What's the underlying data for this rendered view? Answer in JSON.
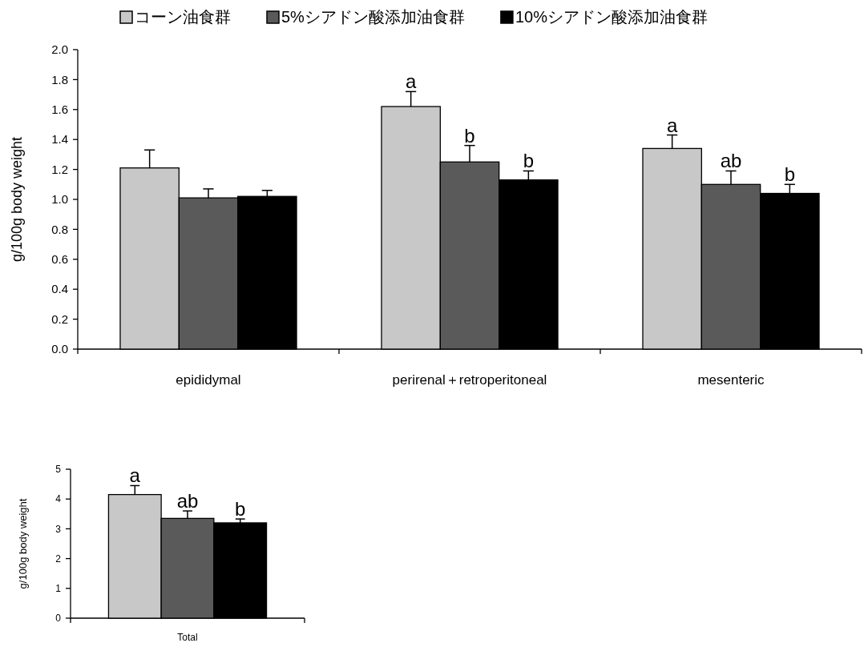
{
  "chart_data": [
    {
      "type": "bar",
      "categories": [
        "epididymal",
        "perirenal＋retroperitoneal",
        "mesenteric"
      ],
      "ylabel": "g/100g body weight",
      "legend": "top",
      "series": [
        {
          "name": "コーン油食群",
          "color": "#c8c8c8",
          "values": [
            1.21,
            1.62,
            1.34
          ],
          "errors": [
            [
              1.21,
              1.33
            ],
            [
              1.62,
              1.72
            ],
            [
              1.34,
              1.43
            ]
          ],
          "value_labels": [
            null,
            "a",
            "a"
          ]
        },
        {
          "name": "5%シアドン酸添加油食群",
          "color": "#5a5a5a",
          "values": [
            1.01,
            1.25,
            1.1
          ],
          "errors": [
            [
              1.01,
              1.07
            ],
            [
              1.25,
              1.36
            ],
            [
              1.1,
              1.19
            ]
          ],
          "value_labels": [
            null,
            "b",
            "ab"
          ]
        },
        {
          "name": "10%シアドン酸添加油食群",
          "color": "#000000",
          "values": [
            1.02,
            1.13,
            1.04
          ],
          "errors": [
            [
              1.02,
              1.06
            ],
            [
              1.13,
              1.19
            ],
            [
              1.04,
              1.1
            ]
          ],
          "value_labels": [
            null,
            "b",
            "b"
          ]
        }
      ],
      "ylim": [
        0,
        2
      ],
      "yticks": [
        {
          "value": 0,
          "label": "0.0"
        },
        {
          "value": 0.2,
          "label": "0.2"
        },
        {
          "value": 0.4,
          "label": "0.4"
        },
        {
          "value": 0.6,
          "label": "0.6"
        },
        {
          "value": 0.8,
          "label": "0.8"
        },
        {
          "value": 1,
          "label": "1.0"
        },
        {
          "value": 1.2,
          "label": "1.2"
        },
        {
          "value": 1.4,
          "label": "1.4"
        },
        {
          "value": 1.6,
          "label": "1.6"
        },
        {
          "value": 1.8,
          "label": "1.8"
        },
        {
          "value": 2,
          "label": "2.0"
        }
      ],
      "grid": false
    },
    {
      "type": "bar",
      "categories": [
        "Total"
      ],
      "ylabel": "g/100g body weight",
      "legend": false,
      "series": [
        {
          "color": "#c8c8c8",
          "values": [
            4.15
          ],
          "errors": [
            [
              4.15,
              4.45
            ]
          ],
          "value_labels": [
            "a"
          ]
        },
        {
          "color": "#5a5a5a",
          "values": [
            3.35
          ],
          "errors": [
            [
              3.35,
              3.6
            ]
          ],
          "value_labels": [
            "ab"
          ]
        },
        {
          "color": "#000000",
          "values": [
            3.2
          ],
          "errors": [
            [
              3.2,
              3.33
            ]
          ],
          "value_labels": [
            "b"
          ]
        }
      ],
      "ylim": [
        0,
        5
      ],
      "yticks": [
        0,
        1,
        2,
        3,
        4,
        5
      ],
      "grid": false
    }
  ]
}
